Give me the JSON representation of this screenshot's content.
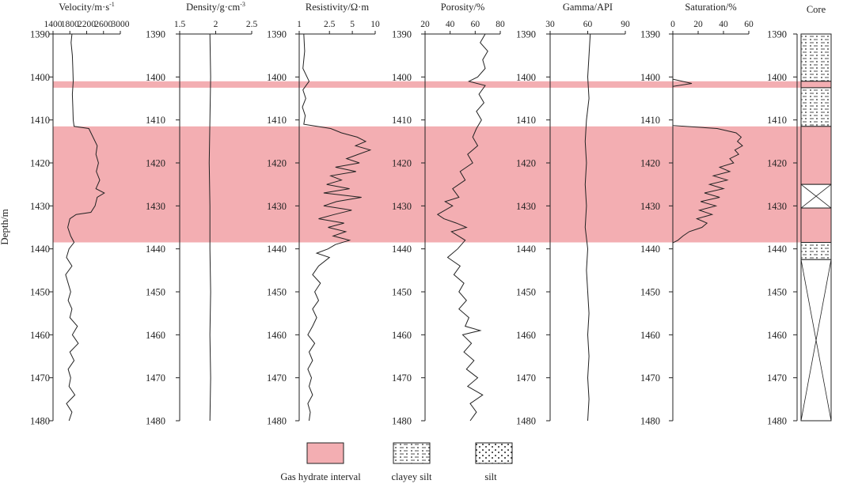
{
  "chart_data": {
    "type": "line",
    "y_axis": {
      "label": "Depth/m",
      "min": 1390,
      "max": 1480,
      "ticks": [
        1390,
        1400,
        1410,
        1420,
        1430,
        1440,
        1450,
        1460,
        1470,
        1480
      ],
      "inverted": true
    },
    "hydrate_intervals": [
      [
        1401.0,
        1402.5
      ],
      [
        1411.5,
        1438.5
      ]
    ],
    "tracks": [
      {
        "id": "velocity",
        "title": "Velocity/m·s",
        "title_sup": "-1",
        "xlim": [
          1400,
          3000
        ],
        "tick_labels": [
          "1400",
          "1800",
          "2200",
          "2600",
          "3000"
        ],
        "tick_values": [
          1400,
          1800,
          2200,
          2600,
          3000
        ],
        "series": [
          [
            1390,
            1850
          ],
          [
            1392,
            1830
          ],
          [
            1395,
            1860
          ],
          [
            1398,
            1870
          ],
          [
            1401,
            1880
          ],
          [
            1404,
            1860
          ],
          [
            1407,
            1870
          ],
          [
            1410,
            1880
          ],
          [
            1411.5,
            1900
          ],
          [
            1412,
            2250
          ],
          [
            1414,
            2350
          ],
          [
            1416,
            2450
          ],
          [
            1418,
            2420
          ],
          [
            1420,
            2480
          ],
          [
            1422,
            2430
          ],
          [
            1424,
            2510
          ],
          [
            1426,
            2420
          ],
          [
            1427,
            2620
          ],
          [
            1428,
            2450
          ],
          [
            1430,
            2400
          ],
          [
            1431.5,
            2300
          ],
          [
            1432,
            1950
          ],
          [
            1433,
            1800
          ],
          [
            1435,
            1750
          ],
          [
            1437,
            1820
          ],
          [
            1438.5,
            1900
          ],
          [
            1440,
            1780
          ],
          [
            1442,
            1720
          ],
          [
            1444,
            1850
          ],
          [
            1446,
            1700
          ],
          [
            1448,
            1760
          ],
          [
            1450,
            1820
          ],
          [
            1452,
            1760
          ],
          [
            1454,
            1850
          ],
          [
            1456,
            1800
          ],
          [
            1458,
            1980
          ],
          [
            1460,
            1860
          ],
          [
            1462,
            2000
          ],
          [
            1464,
            1800
          ],
          [
            1466,
            1900
          ],
          [
            1468,
            1760
          ],
          [
            1470,
            1820
          ],
          [
            1472,
            1780
          ],
          [
            1474,
            1920
          ],
          [
            1476,
            1720
          ],
          [
            1478,
            1850
          ],
          [
            1480,
            1780
          ]
        ]
      },
      {
        "id": "density",
        "title": "Density/g·cm",
        "title_sup": "-3",
        "xlim": [
          1.5,
          2.5
        ],
        "tick_labels": [
          "1.5",
          "2",
          "2.5"
        ],
        "tick_values": [
          1.5,
          2.0,
          2.5
        ],
        "series": [
          [
            1390,
            1.92
          ],
          [
            1400,
            1.93
          ],
          [
            1410,
            1.92
          ],
          [
            1420,
            1.91
          ],
          [
            1430,
            1.92
          ],
          [
            1440,
            1.92
          ],
          [
            1450,
            1.93
          ],
          [
            1460,
            1.92
          ],
          [
            1470,
            1.93
          ],
          [
            1480,
            1.92
          ]
        ]
      },
      {
        "id": "resistivity",
        "title": "Resistivity/Ω·m",
        "scale": "log",
        "xlim": [
          1,
          10
        ],
        "tick_labels": [
          "1",
          "2.5",
          "5",
          "10"
        ],
        "tick_values": [
          1,
          2.5,
          5,
          10
        ],
        "series": [
          [
            1390,
            1.15
          ],
          [
            1394,
            1.18
          ],
          [
            1398,
            1.12
          ],
          [
            1401,
            1.35
          ],
          [
            1403,
            1.12
          ],
          [
            1405,
            1.22
          ],
          [
            1407,
            1.1
          ],
          [
            1409,
            1.2
          ],
          [
            1411,
            1.15
          ],
          [
            1412,
            2.6
          ],
          [
            1413,
            3.6
          ],
          [
            1414,
            5.8
          ],
          [
            1415,
            7.5
          ],
          [
            1416,
            5.5
          ],
          [
            1417,
            8.6
          ],
          [
            1418,
            6.0
          ],
          [
            1419,
            4.2
          ],
          [
            1420,
            6.2
          ],
          [
            1421,
            3.0
          ],
          [
            1422,
            5.6
          ],
          [
            1423,
            2.6
          ],
          [
            1424,
            3.6
          ],
          [
            1425,
            2.3
          ],
          [
            1426,
            4.6
          ],
          [
            1427,
            2.1
          ],
          [
            1428,
            6.6
          ],
          [
            1429,
            3.1
          ],
          [
            1430,
            2.1
          ],
          [
            1431,
            4.9
          ],
          [
            1432,
            2.9
          ],
          [
            1433,
            1.8
          ],
          [
            1434,
            3.9
          ],
          [
            1435,
            2.4
          ],
          [
            1436,
            4.1
          ],
          [
            1437,
            2.8
          ],
          [
            1438,
            4.6
          ],
          [
            1439,
            3.0
          ],
          [
            1440,
            2.4
          ],
          [
            1441,
            1.7
          ],
          [
            1442,
            2.5
          ],
          [
            1444,
            1.8
          ],
          [
            1446,
            1.5
          ],
          [
            1448,
            1.9
          ],
          [
            1450,
            1.6
          ],
          [
            1452,
            1.8
          ],
          [
            1454,
            1.5
          ],
          [
            1456,
            1.7
          ],
          [
            1458,
            1.5
          ],
          [
            1460,
            1.3
          ],
          [
            1462,
            1.6
          ],
          [
            1464,
            1.35
          ],
          [
            1466,
            1.5
          ],
          [
            1468,
            1.3
          ],
          [
            1470,
            1.45
          ],
          [
            1472,
            1.35
          ],
          [
            1474,
            1.5
          ],
          [
            1476,
            1.3
          ],
          [
            1478,
            1.4
          ],
          [
            1480,
            1.35
          ]
        ]
      },
      {
        "id": "porosity",
        "title": "Porosity/%",
        "xlim": [
          20,
          80
        ],
        "tick_labels": [
          "20",
          "40",
          "60",
          "80"
        ],
        "tick_values": [
          20,
          40,
          60,
          80
        ],
        "series": [
          [
            1390,
            68
          ],
          [
            1392,
            64
          ],
          [
            1394,
            70
          ],
          [
            1396,
            66
          ],
          [
            1398,
            68
          ],
          [
            1400,
            62
          ],
          [
            1401,
            55
          ],
          [
            1402,
            68
          ],
          [
            1404,
            63
          ],
          [
            1406,
            67
          ],
          [
            1408,
            61
          ],
          [
            1410,
            65
          ],
          [
            1412,
            61
          ],
          [
            1414,
            58
          ],
          [
            1416,
            62
          ],
          [
            1418,
            54
          ],
          [
            1420,
            58
          ],
          [
            1422,
            48
          ],
          [
            1424,
            52
          ],
          [
            1426,
            42
          ],
          [
            1428,
            47
          ],
          [
            1429,
            36
          ],
          [
            1430,
            42
          ],
          [
            1432,
            30
          ],
          [
            1433,
            35
          ],
          [
            1434,
            45
          ],
          [
            1435,
            53
          ],
          [
            1436,
            41
          ],
          [
            1438,
            52
          ],
          [
            1440,
            46
          ],
          [
            1442,
            38
          ],
          [
            1444,
            48
          ],
          [
            1446,
            43
          ],
          [
            1448,
            51
          ],
          [
            1450,
            47
          ],
          [
            1452,
            53
          ],
          [
            1454,
            47
          ],
          [
            1456,
            55
          ],
          [
            1458,
            52
          ],
          [
            1459,
            64
          ],
          [
            1460,
            50
          ],
          [
            1462,
            57
          ],
          [
            1464,
            51
          ],
          [
            1466,
            59
          ],
          [
            1468,
            53
          ],
          [
            1470,
            62
          ],
          [
            1472,
            54
          ],
          [
            1474,
            66
          ],
          [
            1476,
            56
          ],
          [
            1478,
            61
          ],
          [
            1480,
            56
          ]
        ]
      },
      {
        "id": "gamma",
        "title": "Gamma/API",
        "xlim": [
          30,
          90
        ],
        "tick_labels": [
          "30",
          "60",
          "90"
        ],
        "tick_values": [
          30,
          60,
          90
        ],
        "series": [
          [
            1390,
            62
          ],
          [
            1395,
            61
          ],
          [
            1400,
            60
          ],
          [
            1405,
            61
          ],
          [
            1410,
            59
          ],
          [
            1415,
            58
          ],
          [
            1420,
            59
          ],
          [
            1425,
            58
          ],
          [
            1430,
            59
          ],
          [
            1435,
            58
          ],
          [
            1440,
            60
          ],
          [
            1445,
            59
          ],
          [
            1450,
            60
          ],
          [
            1455,
            61
          ],
          [
            1460,
            60
          ],
          [
            1465,
            61
          ],
          [
            1470,
            60
          ],
          [
            1475,
            61
          ],
          [
            1480,
            60
          ]
        ]
      },
      {
        "id": "saturation",
        "title": "Saturation/%",
        "xlim": [
          0,
          60
        ],
        "tick_labels": [
          "0",
          "20",
          "40",
          "60"
        ],
        "tick_values": [
          0,
          20,
          40,
          60
        ],
        "series": [
          [
            1390,
            0
          ],
          [
            1400.5,
            0
          ],
          [
            1401.5,
            15
          ],
          [
            1402.2,
            0
          ],
          [
            1411.3,
            0
          ],
          [
            1412,
            35
          ],
          [
            1413,
            50
          ],
          [
            1414,
            54
          ],
          [
            1415,
            51
          ],
          [
            1416,
            55
          ],
          [
            1417,
            49
          ],
          [
            1418,
            52
          ],
          [
            1419,
            45
          ],
          [
            1420,
            48
          ],
          [
            1421,
            37
          ],
          [
            1422,
            45
          ],
          [
            1423,
            32
          ],
          [
            1424,
            43
          ],
          [
            1425,
            29
          ],
          [
            1426,
            40
          ],
          [
            1427,
            25
          ],
          [
            1428,
            37
          ],
          [
            1429,
            22
          ],
          [
            1430,
            34
          ],
          [
            1431,
            21
          ],
          [
            1432,
            31
          ],
          [
            1433,
            19
          ],
          [
            1434,
            27
          ],
          [
            1435,
            23
          ],
          [
            1436,
            13
          ],
          [
            1437,
            8
          ],
          [
            1438,
            4
          ],
          [
            1438.6,
            0
          ]
        ]
      }
    ],
    "core": {
      "title": "Core",
      "segments": [
        {
          "from": 1390,
          "to": 1401,
          "type": "clayey-silt"
        },
        {
          "from": 1401,
          "to": 1402.5,
          "type": "hydrate"
        },
        {
          "from": 1402.5,
          "to": 1411.5,
          "type": "clayey-silt"
        },
        {
          "from": 1411.5,
          "to": 1425,
          "type": "hydrate"
        },
        {
          "from": 1425,
          "to": 1430.5,
          "type": "no-recovery"
        },
        {
          "from": 1430.5,
          "to": 1438.5,
          "type": "hydrate"
        },
        {
          "from": 1438.5,
          "to": 1442.5,
          "type": "clayey-silt"
        },
        {
          "from": 1442.5,
          "to": 1480,
          "type": "no-recovery"
        }
      ]
    },
    "legend": [
      {
        "label": "Gas hydrate interval",
        "pattern": "hydrate"
      },
      {
        "label": "clayey  silt",
        "pattern": "clayey-silt"
      },
      {
        "label": "silt",
        "pattern": "silt"
      }
    ],
    "colors": {
      "hydrate_fill": "#f3aeb2",
      "hydrate_stroke": "#333333",
      "line": "#222222"
    }
  }
}
